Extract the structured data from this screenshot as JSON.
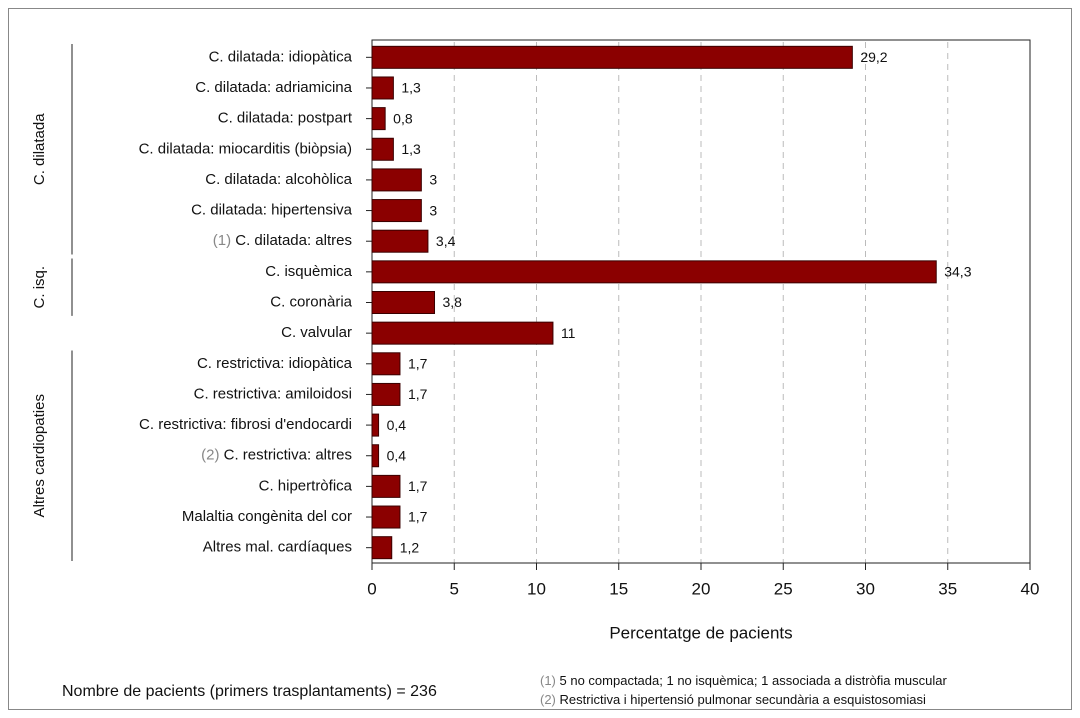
{
  "chart_data": {
    "type": "bar",
    "orientation": "horizontal",
    "categories": [
      "C. dilatada: idiopàtica",
      "C. dilatada: adriamicina",
      "C. dilatada: postpart",
      "C. dilatada: miocarditis (biòpsia)",
      "C. dilatada: alcohòlica",
      "C. dilatada: hipertensiva",
      "C. dilatada: altres",
      "C. isquèmica",
      "C. coronària",
      "C. valvular",
      "C. restrictiva: idiopàtica",
      "C. restrictiva: amiloidosi",
      "C. restrictiva: fibrosi d'endocardi",
      "C. restrictiva: altres",
      "C. hipertròfica",
      "Malaltia congènita del cor",
      "Altres mal. cardíaques"
    ],
    "category_markers": [
      null,
      null,
      null,
      null,
      null,
      null,
      "(1)",
      null,
      null,
      null,
      null,
      null,
      null,
      "(2)",
      null,
      null,
      null
    ],
    "values": [
      29.2,
      1.3,
      0.8,
      1.3,
      3,
      3,
      3.4,
      34.3,
      3.8,
      11,
      1.7,
      1.7,
      0.4,
      0.4,
      1.7,
      1.7,
      1.2
    ],
    "value_labels": [
      "29,2",
      "1,3",
      "0,8",
      "1,3",
      "3",
      "3",
      "3,4",
      "34,3",
      "3,8",
      "11",
      "1,7",
      "1,7",
      "0,4",
      "0,4",
      "1,7",
      "1,7",
      "1,2"
    ],
    "color": "#8b0000",
    "groups": [
      {
        "label": "C. dilatada",
        "span": [
          0,
          6
        ]
      },
      {
        "label": "C. isq.",
        "span": [
          7,
          8
        ]
      },
      {
        "label": "Altres cardiopaties",
        "span": [
          10,
          16
        ]
      }
    ],
    "xlabel": "Percentatge de pacients",
    "xlim": [
      0,
      40
    ],
    "xticks": [
      0,
      5,
      10,
      15,
      20,
      25,
      30,
      35,
      40
    ],
    "grid": true,
    "footer": "Nombre de pacients (primers trasplantaments) = 236",
    "notes": [
      {
        "marker": "(1)",
        "text": "5 no compactada; 1 no isquèmica; 1 associada a distròfia muscular"
      },
      {
        "marker": "(2)",
        "text": "Restrictiva i hipertensió pulmonar secundària a esquistosomiasi"
      }
    ]
  }
}
